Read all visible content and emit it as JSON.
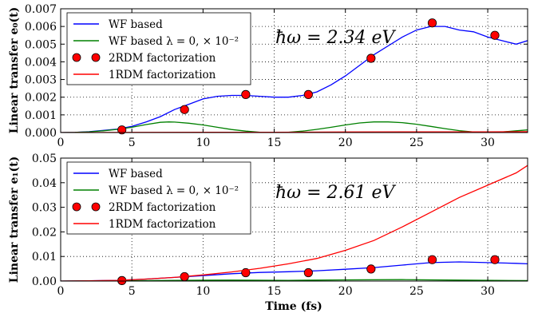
{
  "figure": {
    "xlabel": "Time (fs)"
  },
  "chart_data": [
    {
      "type": "line",
      "ylabel": "Linear transfer e₀(t)",
      "xlim": [
        0,
        32.8
      ],
      "ylim": [
        0,
        0.007
      ],
      "xticks": [
        "0",
        "5",
        "10",
        "15",
        "20",
        "25",
        "30"
      ],
      "yticks": [
        "0.000",
        "0.001",
        "0.002",
        "0.003",
        "0.004",
        "0.005",
        "0.006",
        "0.007"
      ],
      "grid": true,
      "legend_position": "top-left",
      "annotation": "ħω = 2.34 eV",
      "series": [
        {
          "name": "WF based",
          "color": "#0000ff",
          "kind": "line",
          "x": [
            0,
            1,
            2,
            3,
            4,
            5,
            6,
            7,
            8,
            9,
            10,
            11,
            12,
            13,
            14,
            15,
            16,
            17,
            18,
            19,
            20,
            21,
            22,
            23,
            24,
            25,
            26,
            27,
            28,
            29,
            30,
            31,
            32,
            32.8
          ],
          "y": [
            0,
            1e-05,
            5e-05,
            0.00012,
            0.0002,
            0.00035,
            0.0006,
            0.0009,
            0.0013,
            0.0016,
            0.0019,
            0.00205,
            0.0021,
            0.0021,
            0.00205,
            0.002,
            0.002,
            0.0021,
            0.0023,
            0.0027,
            0.0032,
            0.0038,
            0.0044,
            0.0049,
            0.0054,
            0.0058,
            0.006,
            0.006,
            0.0058,
            0.0057,
            0.0054,
            0.0052,
            0.005,
            0.0052
          ]
        },
        {
          "name": "WF based λ = 0,  × 10⁻²",
          "color": "#008000",
          "kind": "line",
          "x": [
            0,
            1,
            2,
            3,
            4,
            5,
            6,
            7,
            7.6,
            8,
            9,
            10,
            11,
            12,
            13,
            14,
            15,
            16,
            17,
            18,
            19,
            20,
            21,
            22,
            23,
            24,
            25,
            26,
            27,
            28,
            29,
            30,
            31,
            32,
            32.8
          ],
          "y": [
            0,
            1e-05,
            4e-05,
            0.0001,
            0.00018,
            0.0003,
            0.00045,
            0.00058,
            0.0006,
            0.00059,
            0.00053,
            0.00043,
            0.0003,
            0.00017,
            8e-05,
            2e-05,
            0,
            2e-05,
            8e-05,
            0.00018,
            0.0003,
            0.00043,
            0.00054,
            0.0006,
            0.0006,
            0.00056,
            0.00047,
            0.00035,
            0.00022,
            0.00011,
            3e-05,
            1e-05,
            3e-05,
            0.0001,
            0.00015
          ]
        },
        {
          "name": "2RDM factorization",
          "color": "#ff0000",
          "kind": "markers",
          "x": [
            4.3,
            8.7,
            13.0,
            17.4,
            21.8,
            26.1,
            30.5
          ],
          "y": [
            0.00015,
            0.0013,
            0.00215,
            0.00215,
            0.0042,
            0.0062,
            0.0055
          ]
        },
        {
          "name": "1RDM factorization",
          "color": "#ff0000",
          "kind": "line",
          "x": [
            0,
            5,
            10,
            15,
            20,
            25,
            30,
            32.8
          ],
          "y": [
            0,
            1e-05,
            2e-05,
            2e-05,
            3e-05,
            4e-05,
            4e-05,
            5e-05
          ]
        }
      ]
    },
    {
      "type": "line",
      "ylabel": "Linear transfer e₁(t)",
      "xlabel": "Time (fs)",
      "xlim": [
        0,
        32.8
      ],
      "ylim": [
        0,
        0.05
      ],
      "xticks": [
        "0",
        "5",
        "10",
        "15",
        "20",
        "25",
        "30"
      ],
      "yticks": [
        "0.00",
        "0.01",
        "0.02",
        "0.03",
        "0.04",
        "0.05"
      ],
      "grid": true,
      "legend_position": "top-left",
      "annotation": "ħω = 2.61 eV",
      "series": [
        {
          "name": "WF based",
          "color": "#0000ff",
          "kind": "line",
          "x": [
            0,
            2,
            4,
            6,
            8,
            10,
            12,
            14,
            16,
            18,
            20,
            22,
            24,
            26,
            28,
            30,
            32,
            32.8
          ],
          "y": [
            0,
            0.0001,
            0.0003,
            0.0008,
            0.0015,
            0.0022,
            0.003,
            0.0035,
            0.0038,
            0.0042,
            0.0048,
            0.0055,
            0.0065,
            0.0075,
            0.0078,
            0.0075,
            0.0072,
            0.007
          ]
        },
        {
          "name": "WF based λ = 0,  × 10⁻²",
          "color": "#008000",
          "kind": "line",
          "x": [
            0,
            4,
            8,
            12,
            16,
            20,
            24,
            28,
            32.8
          ],
          "y": [
            0,
            0.0001,
            0.0003,
            0.0004,
            0.0003,
            0.0005,
            0.0006,
            0.0004,
            0.0002
          ]
        },
        {
          "name": "2RDM factorization",
          "color": "#ff0000",
          "kind": "markers",
          "x": [
            4.3,
            8.7,
            13.0,
            17.4,
            21.8,
            26.1,
            30.5
          ],
          "y": [
            0.0002,
            0.0018,
            0.0034,
            0.0034,
            0.0049,
            0.0087,
            0.0087
          ]
        },
        {
          "name": "1RDM factorization",
          "color": "#ff0000",
          "kind": "line",
          "x": [
            0,
            2,
            4,
            6,
            8,
            10,
            12,
            14,
            16,
            18,
            20,
            22,
            24,
            26,
            28,
            30,
            32,
            32.8
          ],
          "y": [
            0,
            0.0001,
            0.0003,
            0.0008,
            0.0015,
            0.0025,
            0.0037,
            0.0052,
            0.007,
            0.0092,
            0.0125,
            0.0165,
            0.022,
            0.028,
            0.034,
            0.039,
            0.044,
            0.047
          ]
        }
      ]
    }
  ]
}
